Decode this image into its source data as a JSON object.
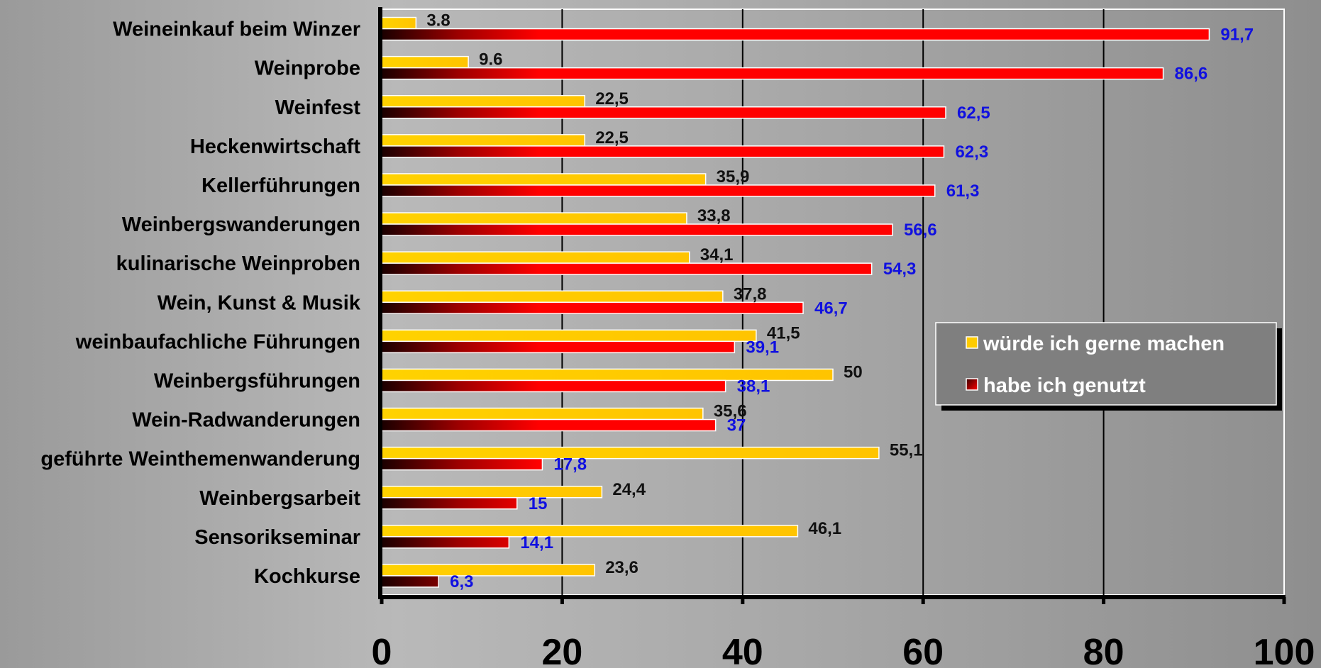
{
  "chart_data": {
    "type": "bar",
    "orientation": "horizontal",
    "categories": [
      "Weineinkauf beim Winzer",
      "Weinprobe",
      "Weinfest",
      "Heckenwirtschaft",
      "Kellerführungen",
      "Weinbergswanderungen",
      "kulinarische Weinproben",
      "Wein, Kunst & Musik",
      "weinbaufachliche Führungen",
      "Weinbergsführungen",
      "Wein-Radwanderungen",
      "geführte Weinthemenwanderung",
      "Weinbergsarbeit",
      "Sensorikseminar",
      "Kochkurse"
    ],
    "series": [
      {
        "name": "würde ich gerne machen",
        "color": "#ffcc00",
        "values": [
          3.8,
          9.6,
          22.5,
          22.5,
          35.9,
          33.8,
          34.1,
          37.8,
          41.5,
          50,
          35.6,
          55.1,
          24.4,
          46.1,
          23.6
        ],
        "labels": [
          "3.8",
          "9.6",
          "22,5",
          "22,5",
          "35,9",
          "33,8",
          "34,1",
          "37,8",
          "41,5",
          "50",
          "35,6",
          "55,1",
          "24,4",
          "46,1",
          "23,6"
        ]
      },
      {
        "name": "habe ich genutzt",
        "color": "#ff0000",
        "values": [
          91.7,
          86.6,
          62.5,
          62.3,
          61.3,
          56.6,
          54.3,
          46.7,
          39.1,
          38.1,
          37,
          17.8,
          15,
          14.1,
          6.3
        ],
        "labels": [
          "91,7",
          "86,6",
          "62,5",
          "62,3",
          "61,3",
          "56,6",
          "54,3",
          "46,7",
          "39,1",
          "38,1",
          "37",
          "17,8",
          "15",
          "14,1",
          "6,3"
        ]
      }
    ],
    "xlim": [
      0,
      100
    ],
    "xticks": [
      0,
      20,
      40,
      60,
      80,
      100
    ],
    "xtick_labels": [
      "0",
      "20",
      "40",
      "60",
      "80",
      "100"
    ],
    "grid": "vertical",
    "legend_position": "right",
    "title": "",
    "xlabel": "",
    "ylabel": ""
  }
}
